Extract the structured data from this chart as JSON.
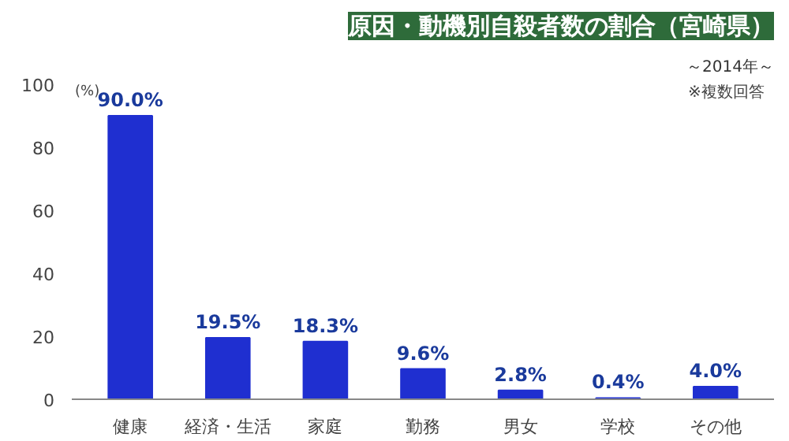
{
  "chart_data": {
    "type": "bar",
    "title": "原因・動機別自殺者数の割合（宮崎県）",
    "subtitle": "～2014年～",
    "ylabel": "(%)",
    "annotations": [
      "※複数回答"
    ],
    "categories": [
      "健康",
      "経済・生活",
      "家庭",
      "勤務",
      "男女",
      "学校",
      "その他"
    ],
    "values": [
      90.0,
      19.5,
      18.3,
      9.6,
      2.8,
      0.4,
      4.0
    ],
    "value_labels": [
      "90.0%",
      "19.5%",
      "18.3%",
      "9.6%",
      "2.8%",
      "0.4%",
      "4.0%"
    ],
    "color": "#1f2fd0",
    "ylim": [
      0,
      100
    ],
    "yticks": [
      0,
      20,
      40,
      60,
      80,
      100
    ],
    "grid": false
  }
}
